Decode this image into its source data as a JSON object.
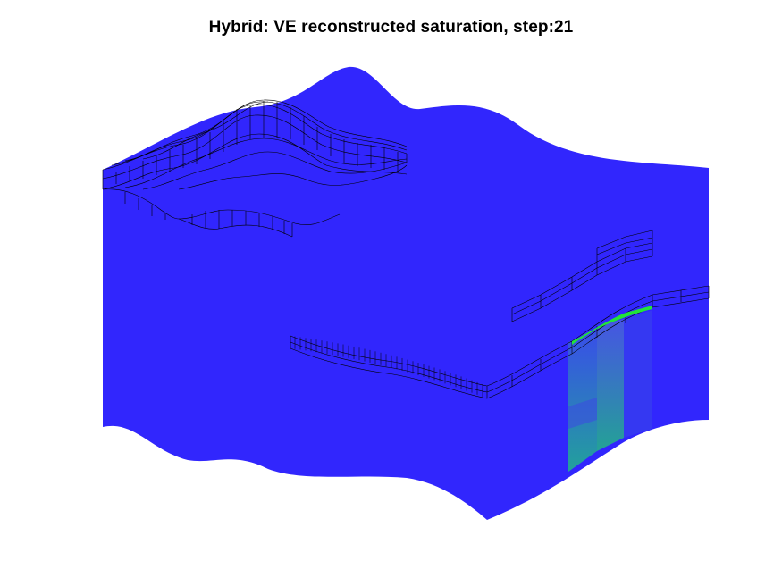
{
  "figure": {
    "title": "Hybrid: VE reconstructed saturation, step:21"
  },
  "colors": {
    "background": "#ffffff",
    "water_phase": "#3126fd",
    "co2_plume": "#22e33a",
    "plume_column": "#2aa88a",
    "grid_lines": "#000000"
  }
}
